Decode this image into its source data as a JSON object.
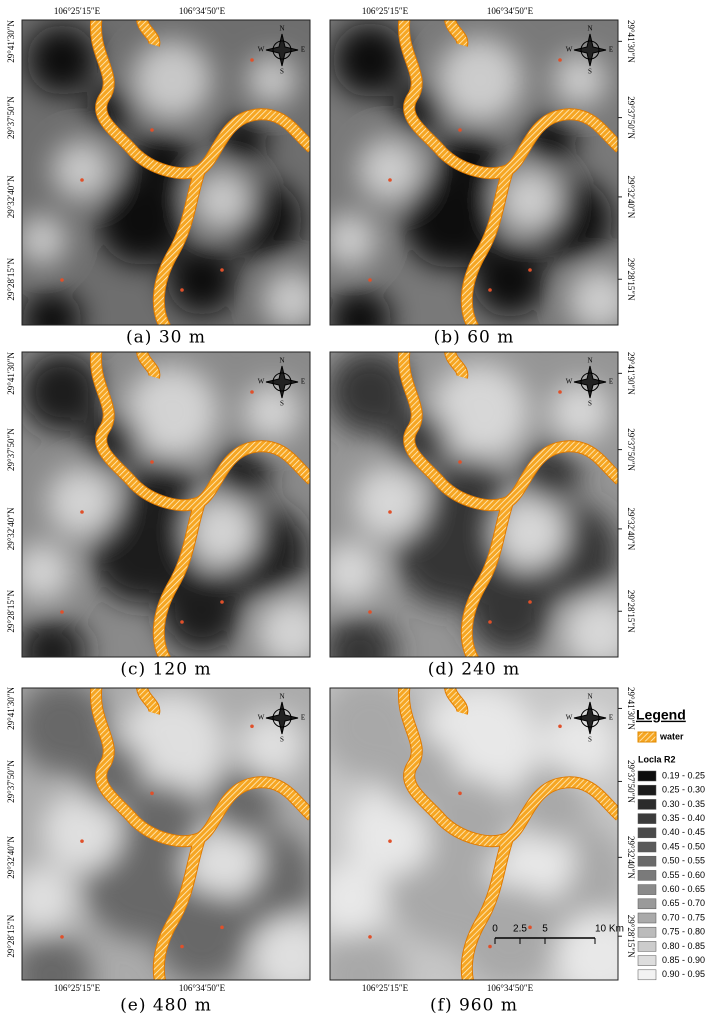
{
  "panels": [
    {
      "caption": "(a) 30 m"
    },
    {
      "caption": "(b) 60 m"
    },
    {
      "caption": "(c) 120 m"
    },
    {
      "caption": "(d) 240 m"
    },
    {
      "caption": "(e) 480 m"
    },
    {
      "caption": "(f) 960 m"
    }
  ],
  "lon_labels": [
    "106°25′15″E",
    "106°34′50″E"
  ],
  "lat_labels": [
    "29°41′30″N",
    "29°37′50″N",
    "29°32′40″N",
    "29°28′15″N"
  ],
  "compass": {
    "n": "N",
    "s": "S",
    "w": "W",
    "e": "E"
  },
  "scale_bar": {
    "labels": [
      "0",
      "2.5",
      "5",
      "10 Km"
    ]
  },
  "legend": {
    "title": "Legend",
    "water": "water",
    "r2_title": "Locla R2",
    "classes": [
      {
        "label": "0.19 - 0.25",
        "color": "#0d0d0d"
      },
      {
        "label": "0.25 - 0.30",
        "color": "#1c1c1c"
      },
      {
        "label": "0.30 - 0.35",
        "color": "#2b2b2b"
      },
      {
        "label": "0.35 - 0.40",
        "color": "#3b3b3b"
      },
      {
        "label": "0.40 - 0.45",
        "color": "#4a4a4a"
      },
      {
        "label": "0.45 - 0.50",
        "color": "#5a5a5a"
      },
      {
        "label": "0.50 - 0.55",
        "color": "#6a6a6a"
      },
      {
        "label": "0.55 - 0.60",
        "color": "#7a7a7a"
      },
      {
        "label": "0.60 - 0.65",
        "color": "#8a8a8a"
      },
      {
        "label": "0.65 - 0.70",
        "color": "#9a9a9a"
      },
      {
        "label": "0.70 - 0.75",
        "color": "#aaaaaa"
      },
      {
        "label": "0.75 - 0.80",
        "color": "#bbbbbb"
      },
      {
        "label": "0.80 - 0.85",
        "color": "#cccccc"
      },
      {
        "label": "0.85 - 0.90",
        "color": "#dddddd"
      },
      {
        "label": "0.90 - 0.95",
        "color": "#f2f2f2"
      }
    ]
  }
}
